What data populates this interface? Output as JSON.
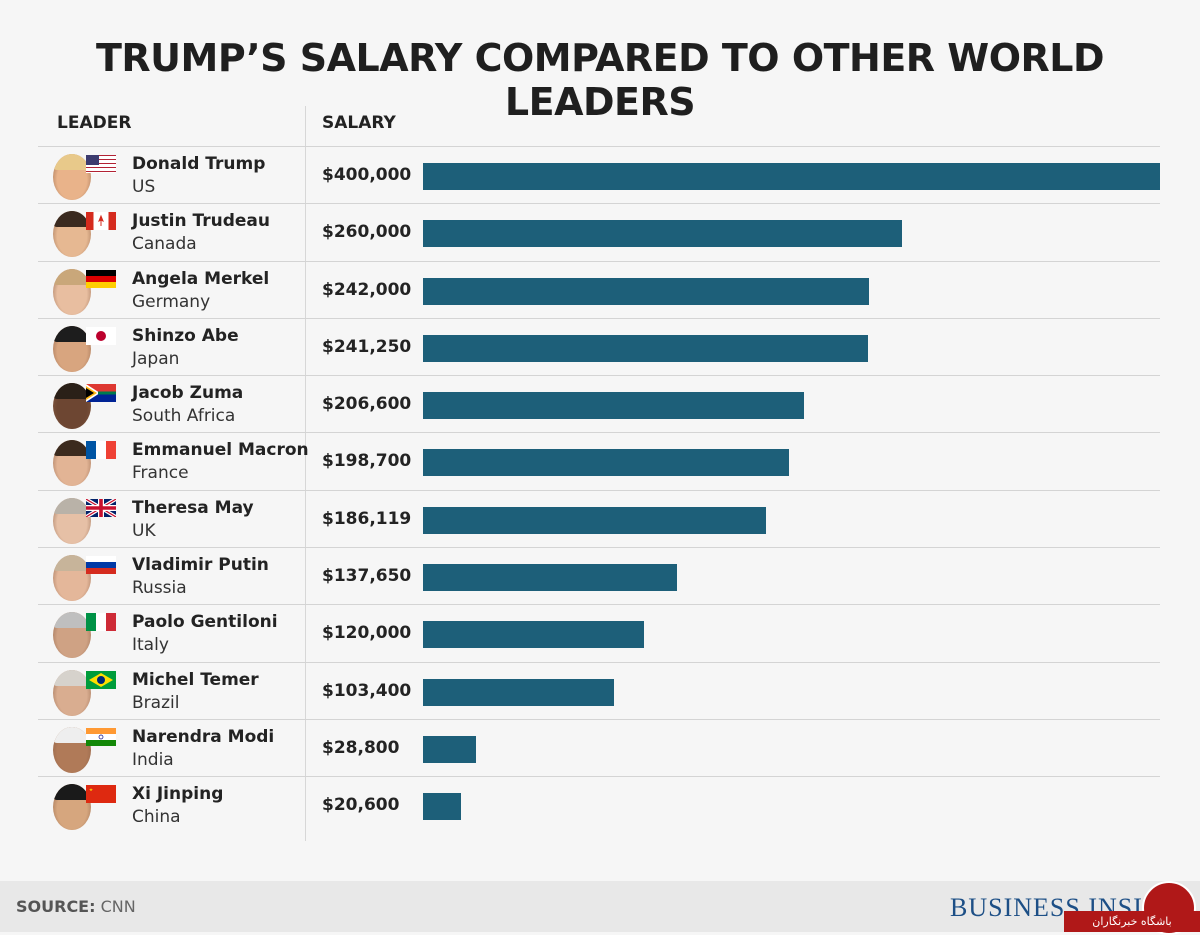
{
  "title": "TRUMP’S SALARY COMPARED TO OTHER WORLD LEADERS",
  "headers": {
    "leader": "LEADER",
    "salary": "SALARY"
  },
  "chart_data": {
    "type": "bar",
    "orientation": "horizontal",
    "title": "TRUMP’S SALARY COMPARED TO OTHER WORLD LEADERS",
    "xlim": [
      0,
      400000
    ],
    "bar_color": "#1d5f79",
    "rows": [
      {
        "name": "Donald Trump",
        "country": "US",
        "salary_label": "$400,000",
        "value": 400000,
        "flag": "us-flag"
      },
      {
        "name": "Justin Trudeau",
        "country": "Canada",
        "salary_label": "$260,000",
        "value": 260000,
        "flag": "canada-flag"
      },
      {
        "name": "Angela Merkel",
        "country": "Germany",
        "salary_label": "$242,000",
        "value": 242000,
        "flag": "germany-flag"
      },
      {
        "name": "Shinzo Abe",
        "country": "Japan",
        "salary_label": "$241,250",
        "value": 241250,
        "flag": "japan-flag"
      },
      {
        "name": "Jacob Zuma",
        "country": "South Africa",
        "salary_label": "$206,600",
        "value": 206600,
        "flag": "south-africa-flag"
      },
      {
        "name": "Emmanuel Macron",
        "country": "France",
        "salary_label": "$198,700",
        "value": 198700,
        "flag": "france-flag"
      },
      {
        "name": "Theresa May",
        "country": "UK",
        "salary_label": "$186,119",
        "value": 186119,
        "flag": "uk-flag"
      },
      {
        "name": "Vladimir Putin",
        "country": "Russia",
        "salary_label": "$137,650",
        "value": 137650,
        "flag": "russia-flag"
      },
      {
        "name": "Paolo Gentiloni",
        "country": "Italy",
        "salary_label": "$120,000",
        "value": 120000,
        "flag": "italy-flag"
      },
      {
        "name": "Michel Temer",
        "country": "Brazil",
        "salary_label": "$103,400",
        "value": 103400,
        "flag": "brazil-flag"
      },
      {
        "name": "Narendra Modi",
        "country": "India",
        "salary_label": "$28,800",
        "value": 28800,
        "flag": "india-flag"
      },
      {
        "name": "Xi Jinping",
        "country": "China",
        "salary_label": "$20,600",
        "value": 20600,
        "flag": "china-flag"
      }
    ]
  },
  "footer": {
    "source_label": "SOURCE:",
    "source_value": "CNN",
    "brand": "BUSINESS INSID",
    "badge_text": "باشگاه خبرنگاران"
  }
}
